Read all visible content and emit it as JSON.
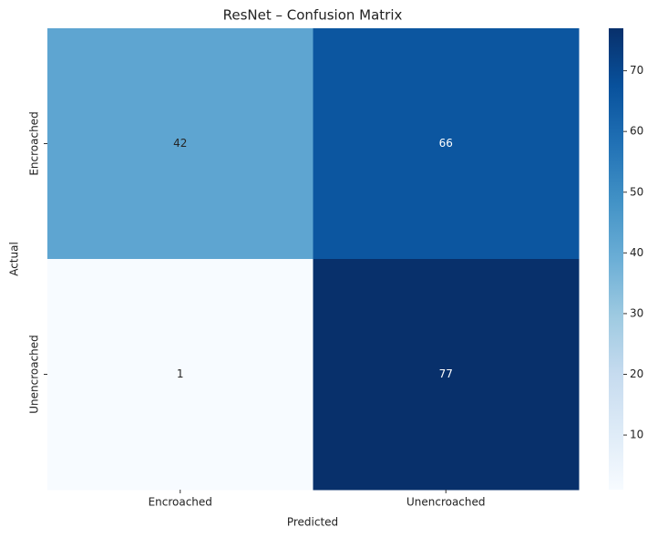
{
  "chart_data": {
    "type": "heatmap",
    "title": "ResNet – Confusion Matrix",
    "x_label": "Predicted",
    "y_label": "Actual",
    "x_categories": [
      "Encroached",
      "Unencroached"
    ],
    "y_categories": [
      "Encroached",
      "Unencroached"
    ],
    "values": [
      [
        42,
        66
      ],
      [
        1,
        77
      ]
    ],
    "colormap": "Blues",
    "clim": [
      1,
      77
    ],
    "cticks": [
      10,
      20,
      30,
      40,
      50,
      60,
      70
    ]
  }
}
